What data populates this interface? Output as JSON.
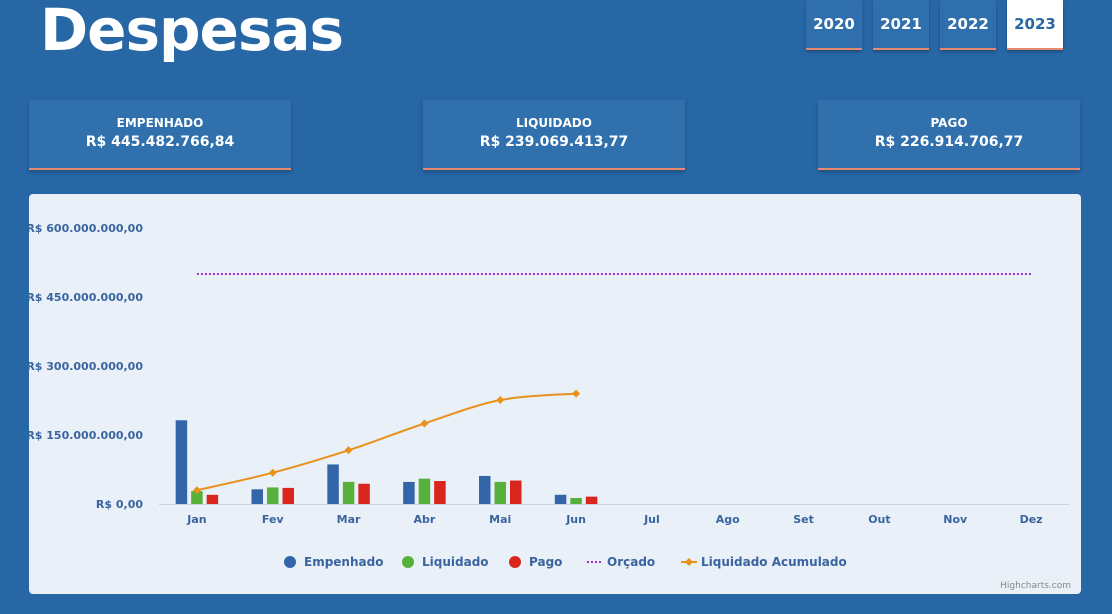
{
  "page": {
    "title": "Despesas"
  },
  "years": [
    {
      "label": "2020",
      "active": false
    },
    {
      "label": "2021",
      "active": false
    },
    {
      "label": "2022",
      "active": false
    },
    {
      "label": "2023",
      "active": true
    }
  ],
  "summary": [
    {
      "label": "EMPENHADO",
      "value": "R$ 445.482.766,84"
    },
    {
      "label": "LIQUIDADO",
      "value": "R$ 239.069.413,77"
    },
    {
      "label": "PAGO",
      "value": "R$ 226.914.706,77"
    }
  ],
  "credits": "Highcharts.com",
  "colors": {
    "empenhado": "#3465a8",
    "liquidado": "#56b13b",
    "pago": "#d9261c",
    "orcado": "#9b2fd9",
    "acumulado": "#e8921c",
    "axis_text": "#3a64a0"
  },
  "chart_data": {
    "type": "bar",
    "categories": [
      "Jan",
      "Fev",
      "Mar",
      "Abr",
      "Mai",
      "Jun",
      "Jul",
      "Ago",
      "Set",
      "Out",
      "Nov",
      "Dez"
    ],
    "y_tick_labels": [
      "R$ 0,00",
      "R$ 150.000.000,00",
      "R$ 300.000.000,00",
      "R$ 450.000.000,00",
      "R$ 600.000.000,00"
    ],
    "y_ticks": [
      0,
      150000000,
      300000000,
      450000000,
      600000000
    ],
    "ylim": [
      0,
      600000000
    ],
    "series": [
      {
        "name": "Empenhado",
        "type": "column",
        "values": [
          182000000,
          32000000,
          86000000,
          48000000,
          61000000,
          20000000,
          null,
          null,
          null,
          null,
          null,
          null
        ]
      },
      {
        "name": "Liquidado",
        "type": "column",
        "values": [
          28000000,
          36000000,
          48000000,
          55000000,
          48000000,
          13000000,
          null,
          null,
          null,
          null,
          null,
          null
        ]
      },
      {
        "name": "Pago",
        "type": "column",
        "values": [
          20000000,
          35000000,
          44000000,
          50000000,
          51000000,
          16000000,
          null,
          null,
          null,
          null,
          null,
          null
        ]
      },
      {
        "name": "Orçado",
        "type": "dotted-line",
        "values": [
          500000000,
          500000000,
          500000000,
          500000000,
          500000000,
          500000000,
          500000000,
          500000000,
          500000000,
          500000000,
          500000000,
          500000000
        ]
      },
      {
        "name": "Liquidado Acumulado",
        "type": "spline",
        "values": [
          30000000,
          68000000,
          117000000,
          175000000,
          226000000,
          240000000,
          null,
          null,
          null,
          null,
          null,
          null
        ]
      }
    ],
    "legend_position": "bottom-center",
    "grid": false
  }
}
